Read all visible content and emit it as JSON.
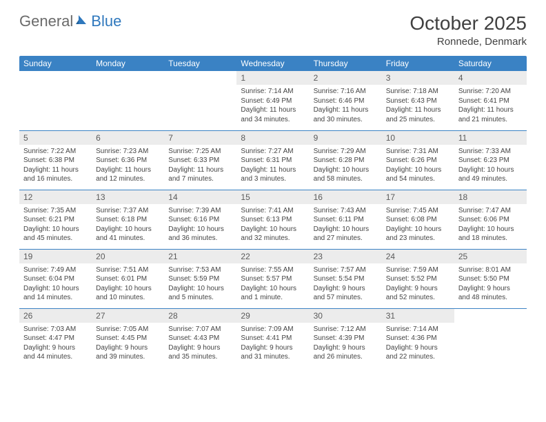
{
  "logo": {
    "word1": "General",
    "word2": "Blue"
  },
  "title": "October 2025",
  "location": "Ronnede, Denmark",
  "colors": {
    "header_bg": "#3a82c4",
    "header_text": "#ffffff",
    "daynum_bg": "#ececec",
    "daynum_text": "#5a5a5a",
    "rule": "#3a82c4",
    "logo_gray": "#6a6a6a",
    "logo_blue": "#2f78bd",
    "title_color": "#404040"
  },
  "weekdays": [
    "Sunday",
    "Monday",
    "Tuesday",
    "Wednesday",
    "Thursday",
    "Friday",
    "Saturday"
  ],
  "weeks": [
    [
      null,
      null,
      null,
      {
        "n": "1",
        "sr": "7:14 AM",
        "ss": "6:49 PM",
        "dl": "11 hours and 34 minutes."
      },
      {
        "n": "2",
        "sr": "7:16 AM",
        "ss": "6:46 PM",
        "dl": "11 hours and 30 minutes."
      },
      {
        "n": "3",
        "sr": "7:18 AM",
        "ss": "6:43 PM",
        "dl": "11 hours and 25 minutes."
      },
      {
        "n": "4",
        "sr": "7:20 AM",
        "ss": "6:41 PM",
        "dl": "11 hours and 21 minutes."
      }
    ],
    [
      {
        "n": "5",
        "sr": "7:22 AM",
        "ss": "6:38 PM",
        "dl": "11 hours and 16 minutes."
      },
      {
        "n": "6",
        "sr": "7:23 AM",
        "ss": "6:36 PM",
        "dl": "11 hours and 12 minutes."
      },
      {
        "n": "7",
        "sr": "7:25 AM",
        "ss": "6:33 PM",
        "dl": "11 hours and 7 minutes."
      },
      {
        "n": "8",
        "sr": "7:27 AM",
        "ss": "6:31 PM",
        "dl": "11 hours and 3 minutes."
      },
      {
        "n": "9",
        "sr": "7:29 AM",
        "ss": "6:28 PM",
        "dl": "10 hours and 58 minutes."
      },
      {
        "n": "10",
        "sr": "7:31 AM",
        "ss": "6:26 PM",
        "dl": "10 hours and 54 minutes."
      },
      {
        "n": "11",
        "sr": "7:33 AM",
        "ss": "6:23 PM",
        "dl": "10 hours and 49 minutes."
      }
    ],
    [
      {
        "n": "12",
        "sr": "7:35 AM",
        "ss": "6:21 PM",
        "dl": "10 hours and 45 minutes."
      },
      {
        "n": "13",
        "sr": "7:37 AM",
        "ss": "6:18 PM",
        "dl": "10 hours and 41 minutes."
      },
      {
        "n": "14",
        "sr": "7:39 AM",
        "ss": "6:16 PM",
        "dl": "10 hours and 36 minutes."
      },
      {
        "n": "15",
        "sr": "7:41 AM",
        "ss": "6:13 PM",
        "dl": "10 hours and 32 minutes."
      },
      {
        "n": "16",
        "sr": "7:43 AM",
        "ss": "6:11 PM",
        "dl": "10 hours and 27 minutes."
      },
      {
        "n": "17",
        "sr": "7:45 AM",
        "ss": "6:08 PM",
        "dl": "10 hours and 23 minutes."
      },
      {
        "n": "18",
        "sr": "7:47 AM",
        "ss": "6:06 PM",
        "dl": "10 hours and 18 minutes."
      }
    ],
    [
      {
        "n": "19",
        "sr": "7:49 AM",
        "ss": "6:04 PM",
        "dl": "10 hours and 14 minutes."
      },
      {
        "n": "20",
        "sr": "7:51 AM",
        "ss": "6:01 PM",
        "dl": "10 hours and 10 minutes."
      },
      {
        "n": "21",
        "sr": "7:53 AM",
        "ss": "5:59 PM",
        "dl": "10 hours and 5 minutes."
      },
      {
        "n": "22",
        "sr": "7:55 AM",
        "ss": "5:57 PM",
        "dl": "10 hours and 1 minute."
      },
      {
        "n": "23",
        "sr": "7:57 AM",
        "ss": "5:54 PM",
        "dl": "9 hours and 57 minutes."
      },
      {
        "n": "24",
        "sr": "7:59 AM",
        "ss": "5:52 PM",
        "dl": "9 hours and 52 minutes."
      },
      {
        "n": "25",
        "sr": "8:01 AM",
        "ss": "5:50 PM",
        "dl": "9 hours and 48 minutes."
      }
    ],
    [
      {
        "n": "26",
        "sr": "7:03 AM",
        "ss": "4:47 PM",
        "dl": "9 hours and 44 minutes."
      },
      {
        "n": "27",
        "sr": "7:05 AM",
        "ss": "4:45 PM",
        "dl": "9 hours and 39 minutes."
      },
      {
        "n": "28",
        "sr": "7:07 AM",
        "ss": "4:43 PM",
        "dl": "9 hours and 35 minutes."
      },
      {
        "n": "29",
        "sr": "7:09 AM",
        "ss": "4:41 PM",
        "dl": "9 hours and 31 minutes."
      },
      {
        "n": "30",
        "sr": "7:12 AM",
        "ss": "4:39 PM",
        "dl": "9 hours and 26 minutes."
      },
      {
        "n": "31",
        "sr": "7:14 AM",
        "ss": "4:36 PM",
        "dl": "9 hours and 22 minutes."
      },
      null
    ]
  ],
  "labels": {
    "sunrise": "Sunrise:",
    "sunset": "Sunset:",
    "daylight": "Daylight:"
  }
}
